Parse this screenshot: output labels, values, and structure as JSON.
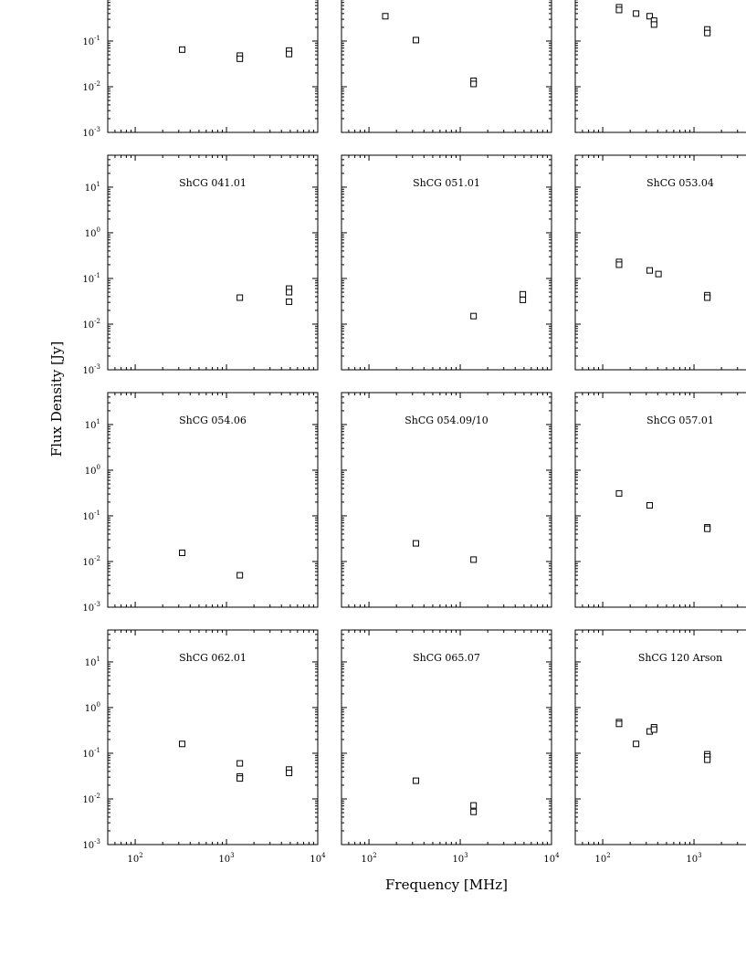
{
  "figure": {
    "xlabel": "Frequency [MHz]",
    "ylabel": "Flux Density [Jy]"
  },
  "chart_data": [
    {
      "type": "scatter",
      "title": "",
      "xscale": "log",
      "yscale": "log",
      "xlim": [
        50,
        10000
      ],
      "ylim": [
        0.001,
        50
      ],
      "series": [
        {
          "x": [
            327,
            1400,
            1400,
            4850,
            4850
          ],
          "y": [
            0.065,
            0.048,
            0.041,
            0.062,
            0.052
          ]
        }
      ]
    },
    {
      "type": "scatter",
      "title": "",
      "xscale": "log",
      "yscale": "log",
      "xlim": [
        50,
        10000
      ],
      "ylim": [
        0.001,
        50
      ],
      "series": [
        {
          "x": [
            151,
            327,
            1400,
            1400
          ],
          "y": [
            0.35,
            0.105,
            0.0135,
            0.0115
          ]
        }
      ]
    },
    {
      "type": "scatter",
      "title": "",
      "xscale": "log",
      "yscale": "log",
      "xlim": [
        50,
        10000
      ],
      "ylim": [
        0.001,
        50
      ],
      "series": [
        {
          "x": [
            151,
            151,
            232,
            327,
            365,
            365,
            1400,
            1400
          ],
          "y": [
            0.55,
            0.48,
            0.4,
            0.35,
            0.28,
            0.23,
            0.18,
            0.15
          ]
        }
      ]
    },
    {
      "type": "scatter",
      "title": "ShCG 041.01",
      "xscale": "log",
      "yscale": "log",
      "xlim": [
        50,
        10000
      ],
      "ylim": [
        0.001,
        50
      ],
      "series": [
        {
          "x": [
            1400,
            4850,
            4850,
            4850
          ],
          "y": [
            0.038,
            0.06,
            0.05,
            0.031
          ]
        }
      ]
    },
    {
      "type": "scatter",
      "title": "ShCG 051.01",
      "xscale": "log",
      "yscale": "log",
      "xlim": [
        50,
        10000
      ],
      "ylim": [
        0.001,
        50
      ],
      "series": [
        {
          "x": [
            1400,
            4850,
            4850
          ],
          "y": [
            0.015,
            0.045,
            0.034
          ]
        }
      ]
    },
    {
      "type": "scatter",
      "title": "ShCG 053.04",
      "xscale": "log",
      "yscale": "log",
      "xlim": [
        50,
        10000
      ],
      "ylim": [
        0.001,
        50
      ],
      "series": [
        {
          "x": [
            151,
            151,
            327,
            408,
            1400,
            1400
          ],
          "y": [
            0.23,
            0.2,
            0.15,
            0.125,
            0.043,
            0.038
          ]
        }
      ]
    },
    {
      "type": "scatter",
      "title": "ShCG 054.06",
      "xscale": "log",
      "yscale": "log",
      "xlim": [
        50,
        10000
      ],
      "ylim": [
        0.001,
        50
      ],
      "series": [
        {
          "x": [
            327,
            1400
          ],
          "y": [
            0.0155,
            0.005
          ]
        }
      ]
    },
    {
      "type": "scatter",
      "title": "ShCG 054.09/10",
      "xscale": "log",
      "yscale": "log",
      "xlim": [
        50,
        10000
      ],
      "ylim": [
        0.001,
        50
      ],
      "series": [
        {
          "x": [
            327,
            1400
          ],
          "y": [
            0.025,
            0.011
          ]
        }
      ]
    },
    {
      "type": "scatter",
      "title": "ShCG 057.01",
      "xscale": "log",
      "yscale": "log",
      "xlim": [
        50,
        10000
      ],
      "ylim": [
        0.001,
        50
      ],
      "series": [
        {
          "x": [
            151,
            327,
            1400,
            1400
          ],
          "y": [
            0.31,
            0.17,
            0.056,
            0.052
          ]
        }
      ]
    },
    {
      "type": "scatter",
      "title": "ShCG 062.01",
      "xscale": "log",
      "yscale": "log",
      "xlim": [
        50,
        10000
      ],
      "ylim": [
        0.001,
        50
      ],
      "series": [
        {
          "x": [
            327,
            1400,
            1400,
            1400,
            4850,
            4850
          ],
          "y": [
            0.16,
            0.06,
            0.031,
            0.028,
            0.044,
            0.037
          ]
        }
      ]
    },
    {
      "type": "scatter",
      "title": "ShCG 065.07",
      "xscale": "log",
      "yscale": "log",
      "xlim": [
        50,
        10000
      ],
      "ylim": [
        0.001,
        50
      ],
      "series": [
        {
          "x": [
            327,
            1400,
            1400
          ],
          "y": [
            0.025,
            0.0072,
            0.0052
          ]
        }
      ]
    },
    {
      "type": "scatter",
      "title": "ShCG 120 Arson",
      "xscale": "log",
      "yscale": "log",
      "xlim": [
        50,
        10000
      ],
      "ylim": [
        0.001,
        50
      ],
      "series": [
        {
          "x": [
            151,
            151,
            232,
            327,
            365,
            365,
            1400,
            1400,
            1400
          ],
          "y": [
            0.48,
            0.44,
            0.16,
            0.3,
            0.37,
            0.33,
            0.095,
            0.085,
            0.072
          ]
        }
      ]
    }
  ],
  "yticks": [
    {
      "value": 10,
      "base": "10",
      "exp": "1"
    },
    {
      "value": 1,
      "base": "10",
      "exp": "0"
    },
    {
      "value": 0.1,
      "base": "10",
      "exp": "-1"
    },
    {
      "value": 0.01,
      "base": "10",
      "exp": "-2"
    },
    {
      "value": 0.001,
      "base": "10",
      "exp": "-3"
    }
  ],
  "xticks": [
    {
      "value": 100,
      "base": "10",
      "exp": "2"
    },
    {
      "value": 1000,
      "base": "10",
      "exp": "3"
    },
    {
      "value": 10000,
      "base": "10",
      "exp": "4"
    }
  ]
}
